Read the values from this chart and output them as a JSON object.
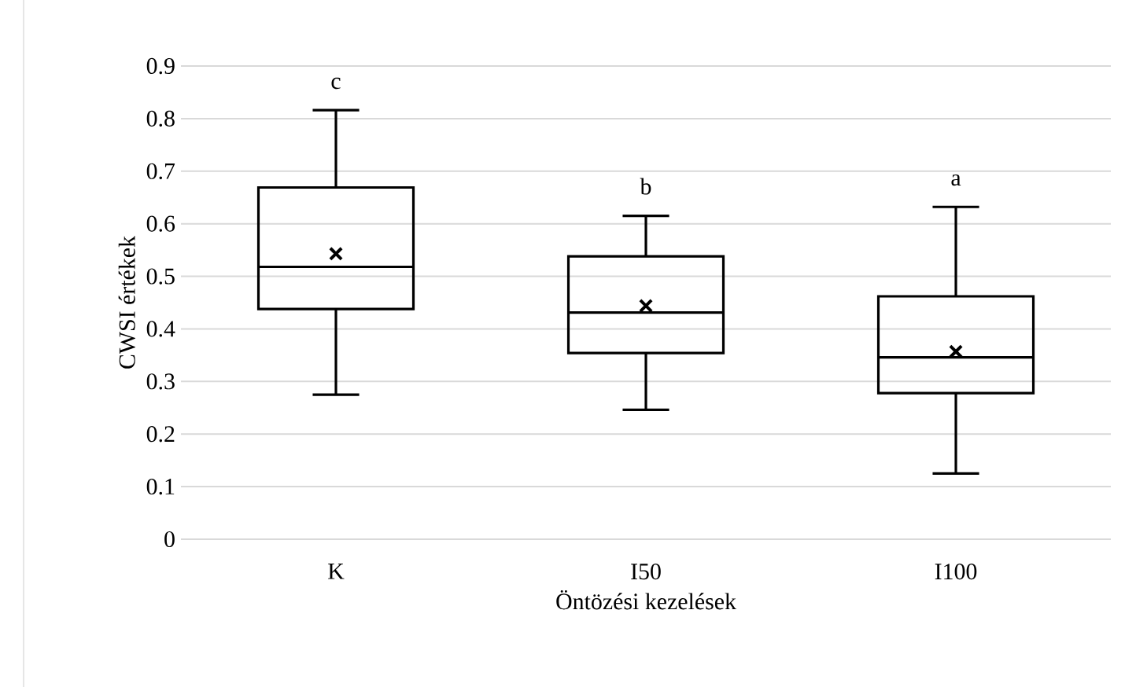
{
  "chart_data": {
    "type": "box",
    "xlabel": "Öntözési kezelések",
    "ylabel": "CWSI értékek",
    "categories": [
      "K",
      "I50",
      "I100"
    ],
    "boxes": [
      {
        "low": 0.275,
        "q1": 0.438,
        "median": 0.518,
        "q3": 0.669,
        "high": 0.816,
        "mean": 0.543
      },
      {
        "low": 0.246,
        "q1": 0.354,
        "median": 0.431,
        "q3": 0.538,
        "high": 0.615,
        "mean": 0.444
      },
      {
        "low": 0.125,
        "q1": 0.278,
        "median": 0.346,
        "q3": 0.462,
        "high": 0.632,
        "mean": 0.357
      }
    ],
    "annotations": [
      "c",
      "b",
      "a"
    ],
    "ylim": [
      0,
      0.9
    ],
    "yticks": [
      0,
      0.1,
      0.2,
      0.3,
      0.4,
      0.5,
      0.6,
      0.7,
      0.8,
      0.9
    ],
    "grid": "y",
    "marker": "cross"
  }
}
